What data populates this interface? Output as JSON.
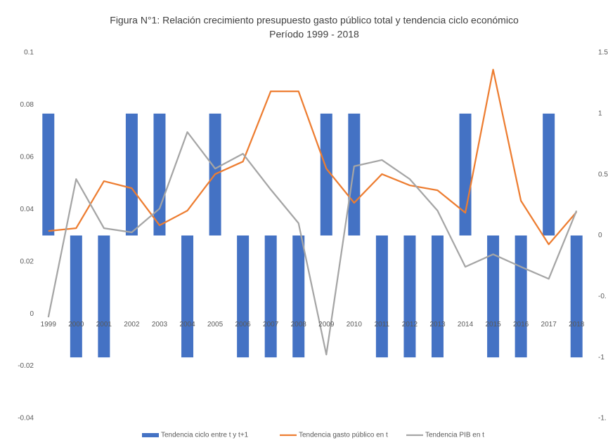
{
  "chart_data": {
    "type": "bar_line",
    "title": "Figura N°1: Relación crecimiento presupuesto gasto público total y tendencia ciclo económico",
    "subtitle": "Período 1999 - 2018",
    "categories": [
      "1999",
      "2000",
      "2001",
      "2002",
      "2003",
      "2004",
      "2005",
      "2006",
      "2007",
      "2008",
      "2009",
      "2010",
      "2011",
      "2012",
      "2013",
      "2014",
      "2015",
      "2016",
      "2017",
      "2018"
    ],
    "series": [
      {
        "name": "Tendencia ciclo entre t y t+1",
        "type": "bar",
        "axis": "y2",
        "color": "#4472c4",
        "values": [
          1,
          -1,
          -1,
          1,
          1,
          -1,
          1,
          -1,
          -1,
          -1,
          1,
          1,
          -1,
          -1,
          -1,
          1,
          -1,
          -1,
          1,
          -1
        ]
      },
      {
        "name": "Tendencia gasto público en t",
        "type": "line",
        "color": "#ed7d31",
        "values": [
          0.0317,
          0.0328,
          0.0508,
          0.0481,
          0.0339,
          0.0395,
          0.0535,
          0.0583,
          0.0852,
          0.0852,
          0.0556,
          0.0425,
          0.0535,
          0.0492,
          0.0473,
          0.0387,
          0.0935,
          0.0433,
          0.0266,
          0.039
        ]
      },
      {
        "name": "Tendencia PIB en t",
        "type": "line",
        "color": "#a5a5a5",
        "values": [
          -0.0013,
          0.0516,
          0.0328,
          0.0312,
          0.0403,
          0.0696,
          0.0556,
          0.0613,
          0.0476,
          0.0347,
          -0.0156,
          0.0565,
          0.0589,
          0.0516,
          0.0395,
          0.018,
          0.0228,
          0.018,
          0.0134,
          0.0395
        ]
      }
    ],
    "ylim": [
      -0.04,
      0.1
    ],
    "yticks": [
      -0.04,
      -0.02,
      0,
      0.02,
      0.04,
      0.06,
      0.08,
      0.1
    ],
    "y2lim": [
      -1.5,
      1.5
    ],
    "y2ticks": [
      {
        "value": -1.5,
        "label": "-1."
      },
      -1,
      {
        "value": -0.5,
        "label": "-0."
      },
      0,
      0.5,
      1,
      1.5
    ],
    "grid": false,
    "legend": "bottom"
  }
}
